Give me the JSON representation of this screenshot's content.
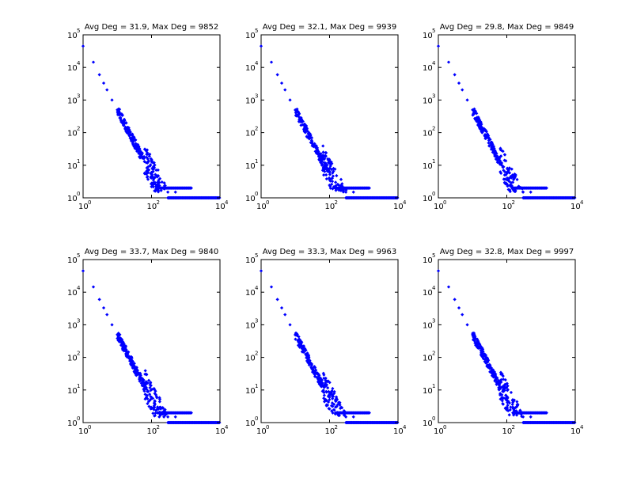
{
  "chart_data": [
    {
      "type": "scatter",
      "title": "Avg Deg = 31.9, Max Deg = 9852",
      "xscale": "log",
      "yscale": "log",
      "xlim": [
        1,
        10000
      ],
      "ylim": [
        1,
        100000
      ],
      "xticks": [
        {
          "base": "10",
          "exp": "0"
        },
        {
          "base": "10",
          "exp": "2"
        },
        {
          "base": "10",
          "exp": "4"
        }
      ],
      "yticks": [
        {
          "base": "10",
          "exp": "0"
        },
        {
          "base": "10",
          "exp": "1"
        },
        {
          "base": "10",
          "exp": "2"
        },
        {
          "base": "10",
          "exp": "3"
        },
        {
          "base": "10",
          "exp": "4"
        },
        {
          "base": "10",
          "exp": "5"
        }
      ],
      "grid": false,
      "marker_color": "#0000ff",
      "series": [
        {
          "points": [
            [
              1,
              45000
            ],
            [
              2,
              14500
            ],
            [
              3,
              6000
            ],
            [
              4,
              3300
            ],
            [
              5,
              2050
            ],
            [
              7,
              1000
            ],
            [
              10,
              500
            ],
            [
              15,
              215
            ],
            [
              20,
              125
            ],
            [
              30,
              58
            ],
            [
              40,
              34
            ],
            [
              50,
              23
            ],
            [
              60,
              16
            ],
            [
              70,
              12
            ],
            [
              80,
              9
            ],
            [
              100,
              6
            ],
            [
              120,
              4
            ],
            [
              150,
              3
            ],
            [
              200,
              2
            ],
            [
              300,
              1.5
            ],
            [
              500,
              1.5
            ]
          ],
          "tail_y1_range": [
            300,
            10000
          ],
          "tail_y2_range": [
            150,
            1500
          ]
        }
      ]
    },
    {
      "type": "scatter",
      "title": "Avg Deg = 32.1, Max Deg = 9939",
      "xscale": "log",
      "yscale": "log",
      "xlim": [
        1,
        10000
      ],
      "ylim": [
        1,
        100000
      ],
      "xticks": [
        {
          "base": "10",
          "exp": "0"
        },
        {
          "base": "10",
          "exp": "2"
        },
        {
          "base": "10",
          "exp": "4"
        }
      ],
      "yticks": [
        {
          "base": "10",
          "exp": "0"
        },
        {
          "base": "10",
          "exp": "1"
        },
        {
          "base": "10",
          "exp": "2"
        },
        {
          "base": "10",
          "exp": "3"
        },
        {
          "base": "10",
          "exp": "4"
        },
        {
          "base": "10",
          "exp": "5"
        }
      ],
      "grid": false,
      "marker_color": "#0000ff",
      "series": [
        {
          "points": [
            [
              1,
              45000
            ],
            [
              2,
              14500
            ],
            [
              3,
              6000
            ],
            [
              4,
              3300
            ],
            [
              5,
              2050
            ],
            [
              7,
              1000
            ],
            [
              10,
              500
            ],
            [
              15,
              215
            ],
            [
              20,
              125
            ],
            [
              30,
              58
            ],
            [
              40,
              34
            ],
            [
              50,
              23
            ],
            [
              60,
              16
            ],
            [
              70,
              12
            ],
            [
              80,
              9
            ],
            [
              100,
              6
            ],
            [
              120,
              4
            ],
            [
              150,
              3
            ],
            [
              200,
              2
            ],
            [
              300,
              1.5
            ],
            [
              500,
              1.5
            ]
          ],
          "tail_y1_range": [
            300,
            10000
          ],
          "tail_y2_range": [
            150,
            1500
          ]
        }
      ]
    },
    {
      "type": "scatter",
      "title": "Avg Deg = 29.8, Max Deg = 9849",
      "xscale": "log",
      "yscale": "log",
      "xlim": [
        1,
        10000
      ],
      "ylim": [
        1,
        100000
      ],
      "xticks": [
        {
          "base": "10",
          "exp": "0"
        },
        {
          "base": "10",
          "exp": "2"
        },
        {
          "base": "10",
          "exp": "4"
        }
      ],
      "yticks": [
        {
          "base": "10",
          "exp": "0"
        },
        {
          "base": "10",
          "exp": "1"
        },
        {
          "base": "10",
          "exp": "2"
        },
        {
          "base": "10",
          "exp": "3"
        },
        {
          "base": "10",
          "exp": "4"
        },
        {
          "base": "10",
          "exp": "5"
        }
      ],
      "grid": false,
      "marker_color": "#0000ff",
      "series": [
        {
          "points": [
            [
              1,
              45000
            ],
            [
              2,
              14500
            ],
            [
              3,
              6000
            ],
            [
              4,
              3300
            ],
            [
              5,
              2050
            ],
            [
              7,
              1000
            ],
            [
              10,
              500
            ],
            [
              15,
              215
            ],
            [
              20,
              125
            ],
            [
              30,
              58
            ],
            [
              40,
              34
            ],
            [
              50,
              23
            ],
            [
              60,
              16
            ],
            [
              70,
              12
            ],
            [
              80,
              9
            ],
            [
              100,
              6
            ],
            [
              120,
              4
            ],
            [
              150,
              3
            ],
            [
              200,
              2
            ],
            [
              300,
              1.5
            ],
            [
              500,
              1.5
            ]
          ],
          "tail_y1_range": [
            300,
            10000
          ],
          "tail_y2_range": [
            150,
            1500
          ]
        }
      ]
    },
    {
      "type": "scatter",
      "title": "Avg Deg = 33.7, Max Deg = 9840",
      "xscale": "log",
      "yscale": "log",
      "xlim": [
        1,
        10000
      ],
      "ylim": [
        1,
        100000
      ],
      "xticks": [
        {
          "base": "10",
          "exp": "0"
        },
        {
          "base": "10",
          "exp": "2"
        },
        {
          "base": "10",
          "exp": "4"
        }
      ],
      "yticks": [
        {
          "base": "10",
          "exp": "0"
        },
        {
          "base": "10",
          "exp": "1"
        },
        {
          "base": "10",
          "exp": "2"
        },
        {
          "base": "10",
          "exp": "3"
        },
        {
          "base": "10",
          "exp": "4"
        },
        {
          "base": "10",
          "exp": "5"
        }
      ],
      "grid": false,
      "marker_color": "#0000ff",
      "series": [
        {
          "points": [
            [
              1,
              45000
            ],
            [
              2,
              14500
            ],
            [
              3,
              6000
            ],
            [
              4,
              3300
            ],
            [
              5,
              2050
            ],
            [
              7,
              1000
            ],
            [
              10,
              500
            ],
            [
              15,
              215
            ],
            [
              20,
              125
            ],
            [
              30,
              58
            ],
            [
              40,
              34
            ],
            [
              50,
              23
            ],
            [
              60,
              16
            ],
            [
              70,
              12
            ],
            [
              80,
              9
            ],
            [
              100,
              6
            ],
            [
              120,
              4
            ],
            [
              150,
              3
            ],
            [
              200,
              2
            ],
            [
              300,
              1.5
            ],
            [
              500,
              1.5
            ]
          ],
          "tail_y1_range": [
            300,
            10000
          ],
          "tail_y2_range": [
            150,
            1500
          ]
        }
      ]
    },
    {
      "type": "scatter",
      "title": "Avg Deg = 33.3, Max Deg = 9963",
      "xscale": "log",
      "yscale": "log",
      "xlim": [
        1,
        10000
      ],
      "ylim": [
        1,
        100000
      ],
      "xticks": [
        {
          "base": "10",
          "exp": "0"
        },
        {
          "base": "10",
          "exp": "2"
        },
        {
          "base": "10",
          "exp": "4"
        }
      ],
      "yticks": [
        {
          "base": "10",
          "exp": "0"
        },
        {
          "base": "10",
          "exp": "1"
        },
        {
          "base": "10",
          "exp": "2"
        },
        {
          "base": "10",
          "exp": "3"
        },
        {
          "base": "10",
          "exp": "4"
        },
        {
          "base": "10",
          "exp": "5"
        }
      ],
      "grid": false,
      "marker_color": "#0000ff",
      "series": [
        {
          "points": [
            [
              1,
              45000
            ],
            [
              2,
              14500
            ],
            [
              3,
              6000
            ],
            [
              4,
              3300
            ],
            [
              5,
              2050
            ],
            [
              7,
              1000
            ],
            [
              10,
              500
            ],
            [
              15,
              215
            ],
            [
              20,
              125
            ],
            [
              30,
              58
            ],
            [
              40,
              34
            ],
            [
              50,
              23
            ],
            [
              60,
              16
            ],
            [
              70,
              12
            ],
            [
              80,
              9
            ],
            [
              100,
              6
            ],
            [
              120,
              4
            ],
            [
              150,
              3
            ],
            [
              200,
              2
            ],
            [
              300,
              1.5
            ],
            [
              500,
              1.5
            ]
          ],
          "tail_y1_range": [
            300,
            10000
          ],
          "tail_y2_range": [
            150,
            1500
          ]
        }
      ]
    },
    {
      "type": "scatter",
      "title": "Avg Deg = 32.8, Max Deg = 9997",
      "xscale": "log",
      "yscale": "log",
      "xlim": [
        1,
        10000
      ],
      "ylim": [
        1,
        100000
      ],
      "xticks": [
        {
          "base": "10",
          "exp": "0"
        },
        {
          "base": "10",
          "exp": "2"
        },
        {
          "base": "10",
          "exp": "4"
        }
      ],
      "yticks": [
        {
          "base": "10",
          "exp": "0"
        },
        {
          "base": "10",
          "exp": "1"
        },
        {
          "base": "10",
          "exp": "2"
        },
        {
          "base": "10",
          "exp": "3"
        },
        {
          "base": "10",
          "exp": "4"
        },
        {
          "base": "10",
          "exp": "5"
        }
      ],
      "grid": false,
      "marker_color": "#0000ff",
      "series": [
        {
          "points": [
            [
              1,
              45000
            ],
            [
              2,
              14500
            ],
            [
              3,
              6000
            ],
            [
              4,
              3300
            ],
            [
              5,
              2050
            ],
            [
              7,
              1000
            ],
            [
              10,
              500
            ],
            [
              15,
              215
            ],
            [
              20,
              125
            ],
            [
              30,
              58
            ],
            [
              40,
              34
            ],
            [
              50,
              23
            ],
            [
              60,
              16
            ],
            [
              70,
              12
            ],
            [
              80,
              9
            ],
            [
              100,
              6
            ],
            [
              120,
              4
            ],
            [
              150,
              3
            ],
            [
              200,
              2
            ],
            [
              300,
              1.5
            ],
            [
              500,
              1.5
            ]
          ],
          "tail_y1_range": [
            300,
            10000
          ],
          "tail_y2_range": [
            150,
            1500
          ]
        }
      ]
    }
  ]
}
